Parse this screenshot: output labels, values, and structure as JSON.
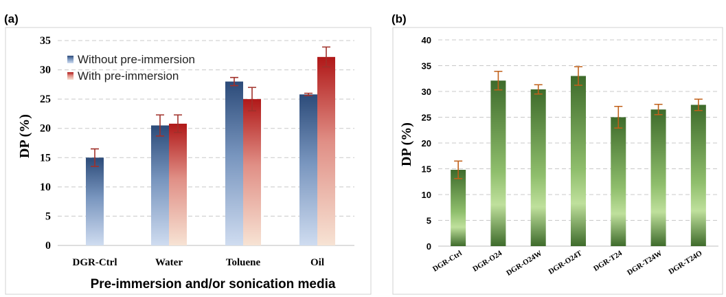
{
  "chart_data": [
    {
      "panel_label": "(a)",
      "type": "bar",
      "xlabel": "Pre-immersion and/or sonication media",
      "ylabel": "DP (%)",
      "ylim": [
        0,
        35
      ],
      "yticks": [
        0,
        5,
        10,
        15,
        20,
        25,
        30,
        35
      ],
      "grid": true,
      "legend_position": "top-left",
      "categories": [
        "DGR-Ctrl",
        "Water",
        "Toluene",
        "Oil"
      ],
      "series": [
        {
          "name": "Without pre-immersion",
          "color": "#2e4f7e",
          "values": [
            15.0,
            20.5,
            28.0,
            25.8
          ],
          "errors": [
            1.5,
            1.8,
            0.7,
            0.2
          ]
        },
        {
          "name": "With pre-immersion",
          "color": "#b01c1c",
          "values": [
            null,
            20.8,
            25.0,
            32.2
          ],
          "errors": [
            null,
            1.5,
            2.0,
            1.7
          ]
        }
      ]
    },
    {
      "panel_label": "(b)",
      "type": "bar",
      "xlabel": "",
      "ylabel": "DP (%)",
      "ylim": [
        0,
        40
      ],
      "yticks": [
        0,
        5,
        10,
        15,
        20,
        25,
        30,
        35,
        40
      ],
      "grid": true,
      "categories": [
        "DGR-Ctrl",
        "DGR-O24",
        "DGR-O24W",
        "DGR-O24T",
        "DGR-T24",
        "DGR-T24W",
        "DGR-T24O"
      ],
      "series": [
        {
          "color": "#4a7a30",
          "values": [
            14.8,
            32.1,
            30.4,
            33.0,
            25.0,
            26.5,
            27.4
          ],
          "errors": [
            1.7,
            1.8,
            0.9,
            1.8,
            2.1,
            1.0,
            1.1
          ]
        }
      ]
    }
  ]
}
